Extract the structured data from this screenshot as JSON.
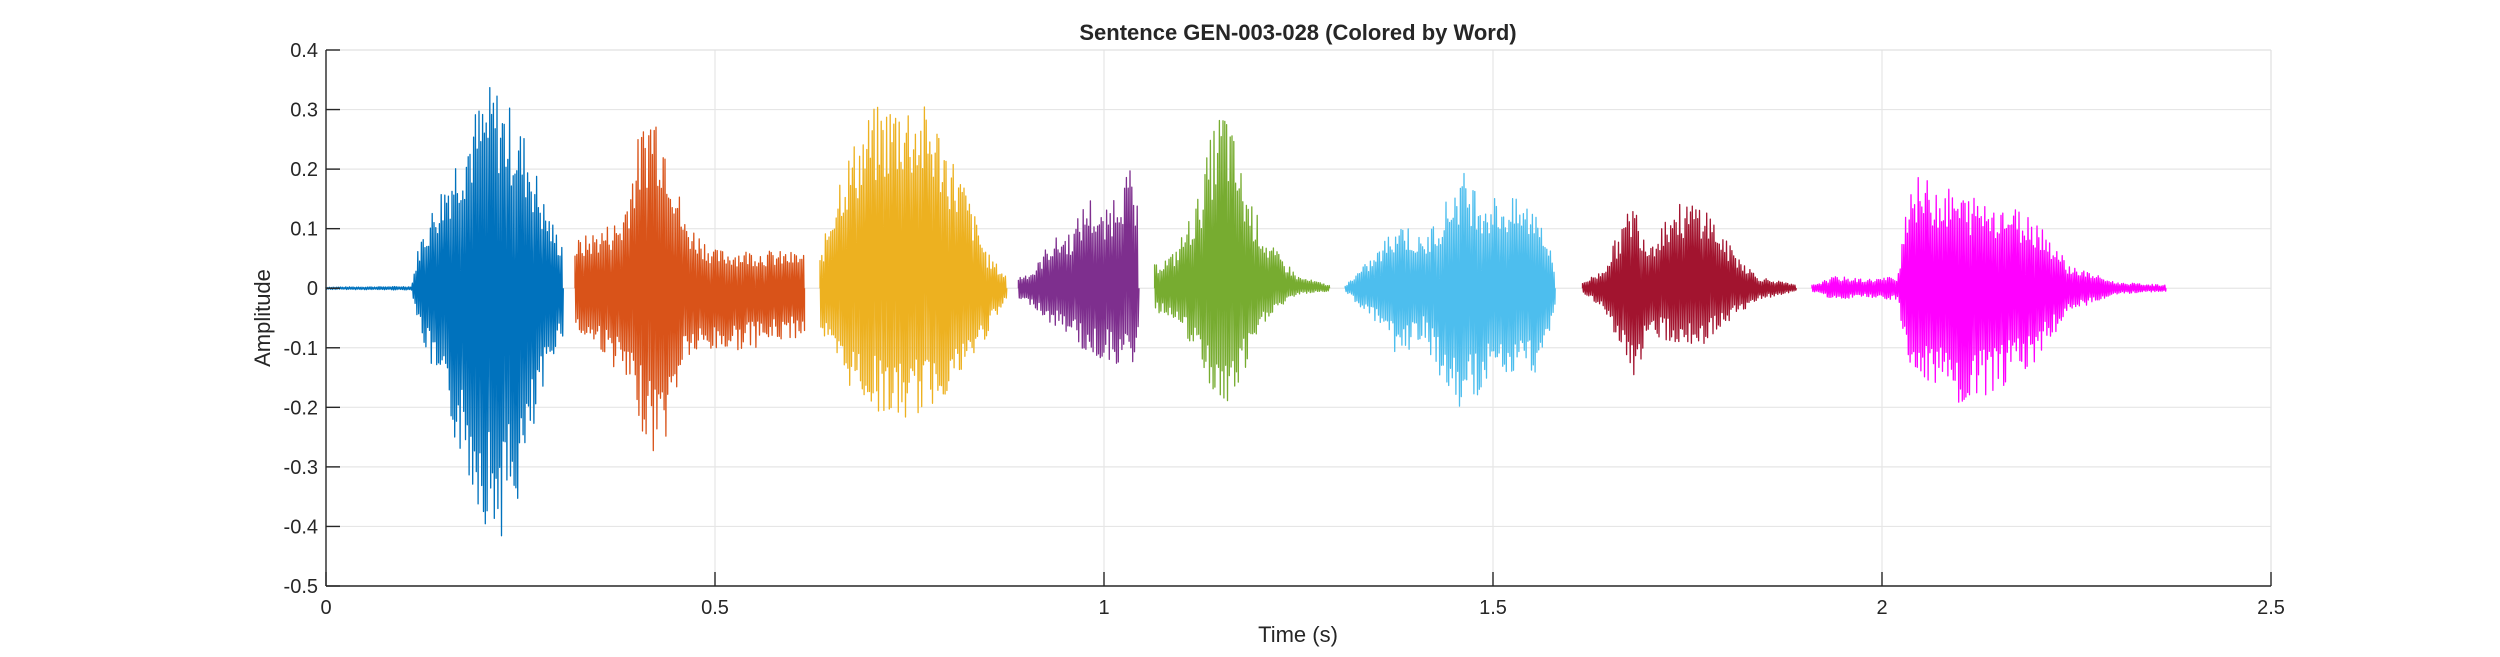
{
  "chart_data": {
    "type": "line",
    "title": "Sentence GEN-003-028 (Colored by Word)",
    "xlabel": "Time (s)",
    "ylabel": "Amplitude",
    "xlim": [
      0,
      2.5
    ],
    "ylim": [
      -0.5,
      0.4
    ],
    "xticks": [
      0,
      0.5,
      1,
      1.5,
      2,
      2.5
    ],
    "xtick_labels": [
      "0",
      "0.5",
      "1",
      "1.5",
      "2",
      "2.5"
    ],
    "yticks": [
      -0.5,
      -0.4,
      -0.3,
      -0.2,
      -0.1,
      0,
      0.1,
      0.2,
      0.3,
      0.4
    ],
    "ytick_labels": [
      "-0.5",
      "-0.4",
      "-0.3",
      "-0.2",
      "-0.1",
      "0",
      "0.1",
      "0.2",
      "0.3",
      "0.4"
    ],
    "grid": true,
    "series": [
      {
        "color": "#0072BD",
        "start": 0.0,
        "end": 0.305,
        "envelope": [
          [
            0.0,
            0.002,
            -0.002
          ],
          [
            0.11,
            0.003,
            -0.003
          ],
          [
            0.12,
            0.08,
            -0.07
          ],
          [
            0.15,
            0.18,
            -0.2
          ],
          [
            0.19,
            0.3,
            -0.35
          ],
          [
            0.215,
            0.35,
            -0.43
          ],
          [
            0.24,
            0.3,
            -0.4
          ],
          [
            0.26,
            0.25,
            -0.3
          ],
          [
            0.28,
            0.15,
            -0.18
          ],
          [
            0.295,
            0.1,
            -0.1
          ],
          [
            0.305,
            0.08,
            -0.08
          ]
        ]
      },
      {
        "color": "#D95319",
        "start": 0.32,
        "end": 0.615,
        "envelope": [
          [
            0.32,
            0.08,
            -0.08
          ],
          [
            0.35,
            0.1,
            -0.1
          ],
          [
            0.38,
            0.12,
            -0.15
          ],
          [
            0.4,
            0.25,
            -0.22
          ],
          [
            0.42,
            0.33,
            -0.28
          ],
          [
            0.44,
            0.26,
            -0.25
          ],
          [
            0.46,
            0.12,
            -0.12
          ],
          [
            0.5,
            0.065,
            -0.11
          ],
          [
            0.55,
            0.065,
            -0.1
          ],
          [
            0.615,
            0.06,
            -0.08
          ]
        ]
      },
      {
        "color": "#EDB120",
        "start": 0.635,
        "end": 0.875,
        "envelope": [
          [
            0.635,
            0.05,
            -0.07
          ],
          [
            0.66,
            0.2,
            -0.15
          ],
          [
            0.7,
            0.3,
            -0.2
          ],
          [
            0.74,
            0.33,
            -0.23
          ],
          [
            0.78,
            0.3,
            -0.2
          ],
          [
            0.82,
            0.18,
            -0.15
          ],
          [
            0.85,
            0.06,
            -0.08
          ],
          [
            0.875,
            0.02,
            -0.02
          ]
        ]
      },
      {
        "color": "#7E2F8E",
        "start": 0.89,
        "end": 1.045,
        "envelope": [
          [
            0.89,
            0.02,
            -0.02
          ],
          [
            0.91,
            0.03,
            -0.03
          ],
          [
            0.93,
            0.08,
            -0.06
          ],
          [
            0.96,
            0.1,
            -0.08
          ],
          [
            0.98,
            0.16,
            -0.12
          ],
          [
            1.0,
            0.12,
            -0.12
          ],
          [
            1.02,
            0.19,
            -0.13
          ],
          [
            1.035,
            0.2,
            -0.14
          ],
          [
            1.045,
            0.12,
            -0.08
          ]
        ]
      },
      {
        "color": "#77AC30",
        "start": 1.065,
        "end": 1.29,
        "envelope": [
          [
            1.065,
            0.04,
            -0.04
          ],
          [
            1.09,
            0.06,
            -0.05
          ],
          [
            1.12,
            0.15,
            -0.12
          ],
          [
            1.14,
            0.27,
            -0.18
          ],
          [
            1.155,
            0.32,
            -0.22
          ],
          [
            1.18,
            0.18,
            -0.15
          ],
          [
            1.21,
            0.08,
            -0.05
          ],
          [
            1.25,
            0.02,
            -0.01
          ],
          [
            1.29,
            0.005,
            -0.005
          ]
        ]
      },
      {
        "color": "#4DBEEE",
        "start": 1.31,
        "end": 1.58,
        "envelope": [
          [
            1.31,
            0.005,
            -0.005
          ],
          [
            1.35,
            0.06,
            -0.06
          ],
          [
            1.38,
            0.12,
            -0.12
          ],
          [
            1.41,
            0.08,
            -0.08
          ],
          [
            1.44,
            0.15,
            -0.18
          ],
          [
            1.46,
            0.2,
            -0.22
          ],
          [
            1.49,
            0.16,
            -0.16
          ],
          [
            1.53,
            0.15,
            -0.15
          ],
          [
            1.56,
            0.14,
            -0.14
          ],
          [
            1.58,
            0.03,
            -0.03
          ]
        ]
      },
      {
        "color": "#A2142F",
        "start": 1.615,
        "end": 1.89,
        "envelope": [
          [
            1.615,
            0.01,
            -0.01
          ],
          [
            1.64,
            0.03,
            -0.03
          ],
          [
            1.66,
            0.09,
            -0.1
          ],
          [
            1.68,
            0.15,
            -0.16
          ],
          [
            1.7,
            0.08,
            -0.08
          ],
          [
            1.73,
            0.14,
            -0.09
          ],
          [
            1.77,
            0.15,
            -0.1
          ],
          [
            1.8,
            0.08,
            -0.06
          ],
          [
            1.84,
            0.02,
            -0.02
          ],
          [
            1.89,
            0.005,
            -0.005
          ]
        ]
      },
      {
        "color": "#FF00FF",
        "start": 1.91,
        "end": 2.365,
        "envelope": [
          [
            1.91,
            0.005,
            -0.005
          ],
          [
            1.94,
            0.02,
            -0.02
          ],
          [
            1.98,
            0.015,
            -0.015
          ],
          [
            2.02,
            0.02,
            -0.02
          ],
          [
            2.035,
            0.19,
            -0.15
          ],
          [
            2.07,
            0.18,
            -0.17
          ],
          [
            2.1,
            0.16,
            -0.21
          ],
          [
            2.15,
            0.15,
            -0.17
          ],
          [
            2.2,
            0.12,
            -0.12
          ],
          [
            2.24,
            0.04,
            -0.04
          ],
          [
            2.3,
            0.01,
            -0.01
          ],
          [
            2.365,
            0.005,
            -0.005
          ]
        ]
      }
    ]
  }
}
